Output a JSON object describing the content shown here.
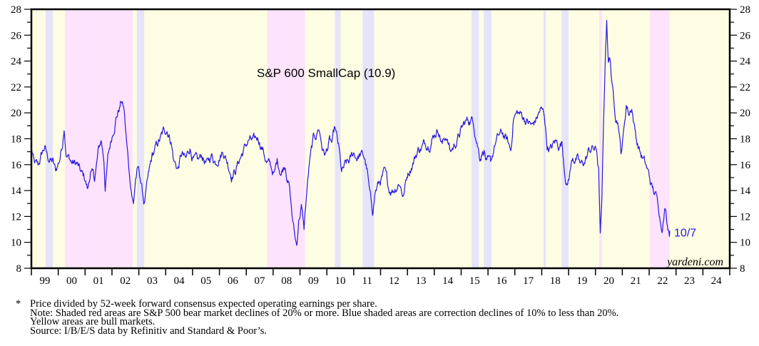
{
  "chart_data": {
    "type": "line",
    "title": "S&P 600 SmallCap (10.9)",
    "xlabel": "",
    "ylabel": "",
    "xlim": [
      1999.0,
      2025.0
    ],
    "ylim": [
      8,
      28
    ],
    "y_ticks": [
      8,
      10,
      12,
      14,
      16,
      18,
      20,
      22,
      24,
      26,
      28
    ],
    "x_tick_labels": [
      "99",
      "00",
      "01",
      "02",
      "03",
      "04",
      "05",
      "06",
      "07",
      "08",
      "09",
      "10",
      "11",
      "12",
      "13",
      "14",
      "15",
      "16",
      "17",
      "18",
      "19",
      "20",
      "21",
      "22",
      "23",
      "24"
    ],
    "grid": false,
    "legend": "none",
    "end_label": "10/7",
    "watermark": "yardeni.com",
    "colors": {
      "line": "#2a17e0",
      "bull_band": "#fdfde3",
      "bear_band": "#fde3fb",
      "correction_band": "#e5e4fb"
    },
    "shaded_regions": [
      {
        "type": "correction",
        "start": 1999.53,
        "end": 1999.8
      },
      {
        "type": "bear",
        "start": 2000.25,
        "end": 2002.77
      },
      {
        "type": "correction",
        "start": 2002.93,
        "end": 2003.2
      },
      {
        "type": "bear",
        "start": 2007.78,
        "end": 2009.19
      },
      {
        "type": "correction",
        "start": 2010.3,
        "end": 2010.51
      },
      {
        "type": "correction",
        "start": 2011.33,
        "end": 2011.76
      },
      {
        "type": "correction",
        "start": 2015.39,
        "end": 2015.66
      },
      {
        "type": "correction",
        "start": 2015.84,
        "end": 2016.13
      },
      {
        "type": "correction",
        "start": 2018.07,
        "end": 2018.15
      },
      {
        "type": "correction",
        "start": 2018.74,
        "end": 2019.0
      },
      {
        "type": "bear",
        "start": 2020.14,
        "end": 2020.25
      },
      {
        "type": "bear",
        "start": 2022.02,
        "end": 2022.76
      }
    ],
    "series": [
      {
        "name": "S&P 600 SmallCap forward P/E",
        "points": [
          [
            1999.0,
            17.3
          ],
          [
            1999.1,
            16.0
          ],
          [
            1999.25,
            15.7
          ],
          [
            1999.4,
            16.8
          ],
          [
            1999.5,
            17.3
          ],
          [
            1999.6,
            16.5
          ],
          [
            1999.8,
            16.2
          ],
          [
            1999.9,
            15.4
          ],
          [
            2000.05,
            16.4
          ],
          [
            2000.15,
            17.6
          ],
          [
            2000.22,
            19.2
          ],
          [
            2000.3,
            17.0
          ],
          [
            2000.5,
            16.2
          ],
          [
            2000.7,
            16.0
          ],
          [
            2000.85,
            15.2
          ],
          [
            2001.0,
            14.8
          ],
          [
            2001.1,
            14.0
          ],
          [
            2001.2,
            15.5
          ],
          [
            2001.35,
            14.8
          ],
          [
            2001.5,
            17.0
          ],
          [
            2001.6,
            17.8
          ],
          [
            2001.7,
            16.4
          ],
          [
            2001.75,
            14.3
          ],
          [
            2001.85,
            16.5
          ],
          [
            2002.0,
            18.2
          ],
          [
            2002.15,
            19.8
          ],
          [
            2002.3,
            20.6
          ],
          [
            2002.35,
            21.0
          ],
          [
            2002.45,
            20.2
          ],
          [
            2002.55,
            17.5
          ],
          [
            2002.65,
            15.2
          ],
          [
            2002.72,
            14.2
          ],
          [
            2002.8,
            13.0
          ],
          [
            2002.88,
            15.0
          ],
          [
            2002.97,
            15.6
          ],
          [
            2003.05,
            15.0
          ],
          [
            2003.15,
            13.6
          ],
          [
            2003.2,
            13.0
          ],
          [
            2003.3,
            14.2
          ],
          [
            2003.5,
            16.5
          ],
          [
            2003.7,
            17.5
          ],
          [
            2003.9,
            18.3
          ],
          [
            2004.05,
            18.8
          ],
          [
            2004.2,
            18.0
          ],
          [
            2004.3,
            16.4
          ],
          [
            2004.45,
            15.7
          ],
          [
            2004.6,
            16.8
          ],
          [
            2004.75,
            16.2
          ],
          [
            2004.9,
            17.3
          ],
          [
            2005.05,
            16.4
          ],
          [
            2005.2,
            16.0
          ],
          [
            2005.35,
            16.6
          ],
          [
            2005.55,
            16.0
          ],
          [
            2005.7,
            16.7
          ],
          [
            2005.85,
            16.3
          ],
          [
            2006.0,
            16.9
          ],
          [
            2006.15,
            17.2
          ],
          [
            2006.3,
            16.3
          ],
          [
            2006.45,
            15.4
          ],
          [
            2006.6,
            15.7
          ],
          [
            2006.8,
            16.7
          ],
          [
            2006.95,
            17.3
          ],
          [
            2007.1,
            17.9
          ],
          [
            2007.3,
            17.6
          ],
          [
            2007.45,
            18.0
          ],
          [
            2007.6,
            17.4
          ],
          [
            2007.75,
            16.3
          ],
          [
            2007.9,
            15.8
          ],
          [
            2008.05,
            15.2
          ],
          [
            2008.15,
            16.2
          ],
          [
            2008.3,
            15.5
          ],
          [
            2008.45,
            16.2
          ],
          [
            2008.6,
            14.5
          ],
          [
            2008.7,
            12.2
          ],
          [
            2008.8,
            10.5
          ],
          [
            2008.88,
            9.7
          ],
          [
            2008.95,
            11.8
          ],
          [
            2009.05,
            12.8
          ],
          [
            2009.15,
            11.0
          ],
          [
            2009.25,
            13.8
          ],
          [
            2009.35,
            16.0
          ],
          [
            2009.5,
            17.8
          ],
          [
            2009.6,
            18.2
          ],
          [
            2009.7,
            18.9
          ],
          [
            2009.85,
            17.2
          ],
          [
            2009.95,
            16.8
          ],
          [
            2010.1,
            17.8
          ],
          [
            2010.2,
            17.5
          ],
          [
            2010.3,
            18.6
          ],
          [
            2010.45,
            17.0
          ],
          [
            2010.55,
            15.2
          ],
          [
            2010.7,
            15.8
          ],
          [
            2010.85,
            16.1
          ],
          [
            2011.0,
            16.8
          ],
          [
            2011.1,
            16.6
          ],
          [
            2011.25,
            16.8
          ],
          [
            2011.4,
            16.5
          ],
          [
            2011.5,
            15.5
          ],
          [
            2011.6,
            13.5
          ],
          [
            2011.7,
            12.3
          ],
          [
            2011.8,
            14.0
          ],
          [
            2011.95,
            14.6
          ],
          [
            2012.15,
            15.2
          ],
          [
            2012.3,
            14.0
          ],
          [
            2012.5,
            14.2
          ],
          [
            2012.7,
            14.8
          ],
          [
            2012.85,
            13.7
          ],
          [
            2013.0,
            15.3
          ],
          [
            2013.2,
            16.3
          ],
          [
            2013.4,
            17.2
          ],
          [
            2013.6,
            17.5
          ],
          [
            2013.8,
            17.8
          ],
          [
            2014.0,
            18.5
          ],
          [
            2014.15,
            18.9
          ],
          [
            2014.3,
            17.7
          ],
          [
            2014.45,
            18.3
          ],
          [
            2014.6,
            17.0
          ],
          [
            2014.75,
            17.5
          ],
          [
            2014.9,
            18.2
          ],
          [
            2015.1,
            19.0
          ],
          [
            2015.25,
            19.4
          ],
          [
            2015.45,
            19.5
          ],
          [
            2015.55,
            18.4
          ],
          [
            2015.7,
            16.8
          ],
          [
            2015.85,
            17.4
          ],
          [
            2015.95,
            16.2
          ],
          [
            2016.1,
            15.8
          ],
          [
            2016.25,
            17.5
          ],
          [
            2016.4,
            18.1
          ],
          [
            2016.55,
            18.3
          ],
          [
            2016.7,
            17.8
          ],
          [
            2016.85,
            17.0
          ],
          [
            2016.95,
            19.8
          ],
          [
            2017.1,
            20.0
          ],
          [
            2017.3,
            19.7
          ],
          [
            2017.5,
            19.3
          ],
          [
            2017.65,
            18.9
          ],
          [
            2017.8,
            19.5
          ],
          [
            2017.95,
            20.2
          ],
          [
            2018.1,
            19.8
          ],
          [
            2018.2,
            17.5
          ],
          [
            2018.35,
            17.2
          ],
          [
            2018.5,
            17.7
          ],
          [
            2018.65,
            17.5
          ],
          [
            2018.75,
            17.8
          ],
          [
            2018.85,
            15.8
          ],
          [
            2018.95,
            14.5
          ],
          [
            2019.05,
            15.5
          ],
          [
            2019.15,
            16.6
          ],
          [
            2019.3,
            16.5
          ],
          [
            2019.45,
            15.8
          ],
          [
            2019.6,
            16.2
          ],
          [
            2019.75,
            17.0
          ],
          [
            2019.9,
            17.3
          ],
          [
            2020.05,
            17.0
          ],
          [
            2020.12,
            15.5
          ],
          [
            2020.18,
            10.5
          ],
          [
            2020.24,
            13.0
          ],
          [
            2020.32,
            20.5
          ],
          [
            2020.38,
            25.0
          ],
          [
            2020.42,
            27.3
          ],
          [
            2020.48,
            24.0
          ],
          [
            2020.55,
            24.3
          ],
          [
            2020.62,
            22.0
          ],
          [
            2020.75,
            20.0
          ],
          [
            2020.85,
            19.5
          ],
          [
            2020.95,
            17.0
          ],
          [
            2021.05,
            18.5
          ],
          [
            2021.15,
            20.7
          ],
          [
            2021.25,
            20.0
          ],
          [
            2021.35,
            20.6
          ],
          [
            2021.45,
            19.0
          ],
          [
            2021.55,
            17.8
          ],
          [
            2021.7,
            16.8
          ],
          [
            2021.85,
            16.0
          ],
          [
            2021.95,
            15.4
          ],
          [
            2022.1,
            14.2
          ],
          [
            2022.25,
            13.5
          ],
          [
            2022.35,
            12.8
          ],
          [
            2022.45,
            11.5
          ],
          [
            2022.5,
            11.6
          ],
          [
            2022.6,
            12.8
          ],
          [
            2022.68,
            11.6
          ],
          [
            2022.77,
            10.9
          ]
        ]
      }
    ]
  },
  "footnote": {
    "star": "*",
    "lines": [
      "Price divided by 52-week forward consensus expected operating earnings per share.",
      "Note: Shaded red areas are S&P 500 bear market declines of 20% or more.  Blue shaded areas are correction declines of 10% to less than 20%.",
      "Yellow areas are bull markets.",
      "Source: I/B/E/S data by Refinitiv and Standard & Poor’s."
    ]
  }
}
